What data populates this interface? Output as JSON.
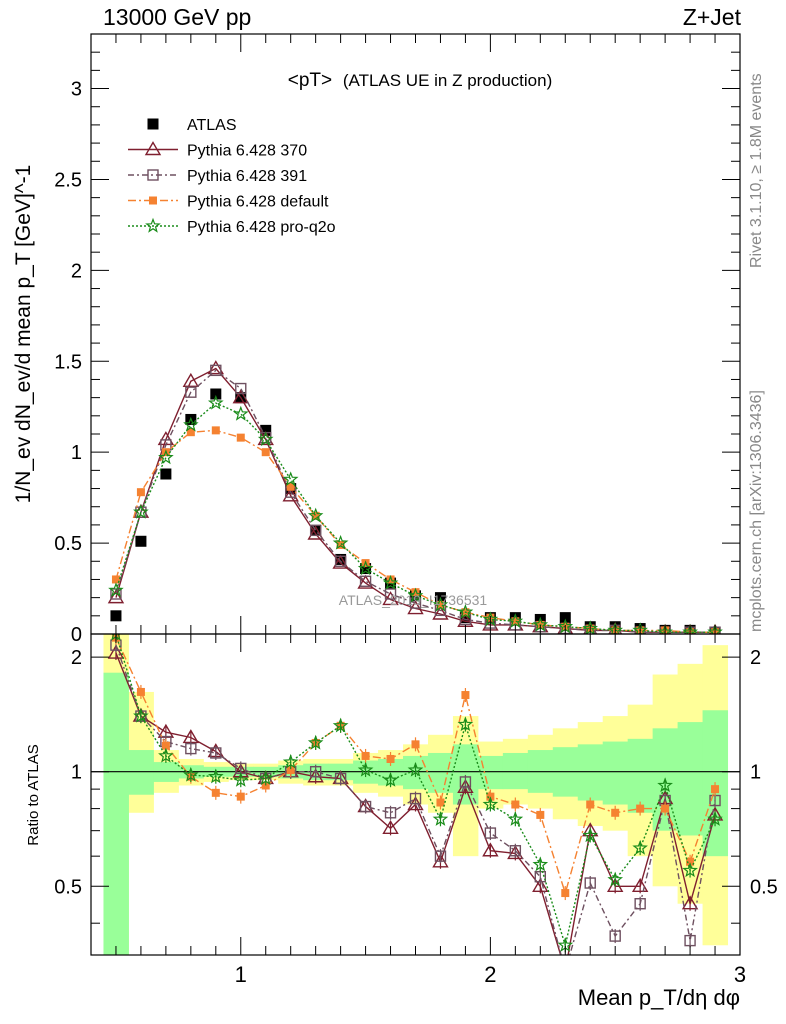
{
  "header": {
    "left": "13000 GeV pp",
    "right": "Z+Jet"
  },
  "side": {
    "rivet": "Rivet 3.1.10, ≥ 1.8M events",
    "mcplots": "mcplots.cern.ch [arXiv:1306.3436]"
  },
  "chart_data": [
    {
      "type": "scatter",
      "title": "<pT>",
      "subtitle": "(ATLAS UE in Z production)",
      "ylabel": "1/N_ev dN_ev/d mean p_T [GeV]^-1",
      "watermark": "ATLAS_2019_I1736531",
      "xlim": [
        0.4,
        3.0
      ],
      "ylim": [
        0,
        3.3
      ],
      "yticks": [
        0,
        0.5,
        1,
        1.5,
        2,
        2.5,
        3
      ],
      "ytick_labels": [
        "0",
        "0.5",
        "1",
        "1.5",
        "2",
        "2.5",
        "3"
      ],
      "legend_position": "top-left",
      "x": [
        0.5,
        0.6,
        0.7,
        0.8,
        0.9,
        1.0,
        1.1,
        1.2,
        1.3,
        1.4,
        1.5,
        1.6,
        1.7,
        1.8,
        1.9,
        2.0,
        2.1,
        2.2,
        2.3,
        2.4,
        2.5,
        2.6,
        2.7,
        2.8,
        2.9
      ],
      "series": [
        {
          "name": "ATLAS",
          "color": "#000000",
          "marker": "square",
          "values": [
            0.1,
            0.51,
            0.88,
            1.18,
            1.32,
            1.3,
            1.12,
            0.8,
            0.57,
            0.41,
            0.36,
            0.28,
            0.21,
            0.2,
            0.09,
            0.09,
            0.09,
            0.08,
            0.09,
            0.04,
            0.04,
            0.03,
            0.02,
            0.02,
            0.01
          ]
        },
        {
          "name": "Pythia 6.428 370",
          "color": "#7f1f2f",
          "marker": "triangle",
          "dash": "",
          "values": [
            0.2,
            0.67,
            1.07,
            1.39,
            1.46,
            1.3,
            1.07,
            0.76,
            0.55,
            0.39,
            0.28,
            0.19,
            0.14,
            0.11,
            0.07,
            0.05,
            0.05,
            0.04,
            0.03,
            0.02,
            0.02,
            0.01,
            0.01,
            0.01,
            0.01
          ]
        },
        {
          "name": "Pythia 6.428 391",
          "color": "#6e5060",
          "marker": "open-square",
          "dash": "6,3,2,3",
          "values": [
            0.22,
            0.67,
            1.04,
            1.33,
            1.45,
            1.35,
            1.08,
            0.78,
            0.57,
            0.4,
            0.29,
            0.22,
            0.17,
            0.13,
            0.08,
            0.06,
            0.05,
            0.04,
            0.03,
            0.02,
            0.02,
            0.01,
            0.01,
            0.01,
            0.01
          ]
        },
        {
          "name": "Pythia 6.428 default",
          "color": "#f58231",
          "marker": "filled-square",
          "dash": "8,3,2,3",
          "values": [
            0.3,
            0.78,
            1.0,
            1.11,
            1.12,
            1.08,
            1.0,
            0.81,
            0.65,
            0.49,
            0.39,
            0.3,
            0.23,
            0.16,
            0.12,
            0.09,
            0.07,
            0.05,
            0.04,
            0.03,
            0.02,
            0.02,
            0.02,
            0.01,
            0.01
          ]
        },
        {
          "name": "Pythia 6.428 pro-q2o",
          "color": "#1a8c1a",
          "marker": "star",
          "dash": "2,2",
          "values": [
            0.24,
            0.67,
            0.97,
            1.15,
            1.27,
            1.21,
            1.07,
            0.85,
            0.65,
            0.5,
            0.36,
            0.28,
            0.21,
            0.16,
            0.12,
            0.08,
            0.07,
            0.05,
            0.04,
            0.03,
            0.02,
            0.02,
            0.01,
            0.01,
            0.01
          ]
        }
      ]
    },
    {
      "type": "scatter",
      "xlabel": "Mean p_T/dη dφ",
      "ylabel": "Ratio to ATLAS",
      "xlim": [
        0.4,
        3.0
      ],
      "ylim": [
        0.33,
        2.3
      ],
      "xticks": [
        1,
        2,
        3
      ],
      "xtick_labels": [
        "1",
        "2",
        "3"
      ],
      "yticks": [
        0.5,
        1,
        2
      ],
      "ytick_labels": [
        "0.5",
        "1",
        "2"
      ],
      "band_edges": [
        0.45,
        0.55,
        0.65,
        0.75,
        0.85,
        0.95,
        1.05,
        1.15,
        1.25,
        1.35,
        1.45,
        1.55,
        1.65,
        1.75,
        1.85,
        1.95,
        2.05,
        2.15,
        2.25,
        2.35,
        2.45,
        2.55,
        2.65,
        2.75,
        2.85,
        2.95
      ],
      "yellow_band": [
        [
          0.33,
          2.3
        ],
        [
          0.78,
          1.62
        ],
        [
          0.88,
          1.14
        ],
        [
          0.92,
          1.08
        ],
        [
          0.94,
          1.06
        ],
        [
          0.95,
          1.05
        ],
        [
          0.95,
          1.05
        ],
        [
          0.93,
          1.07
        ],
        [
          0.92,
          1.08
        ],
        [
          0.92,
          1.08
        ],
        [
          0.88,
          1.12
        ],
        [
          0.86,
          1.14
        ],
        [
          0.82,
          1.18
        ],
        [
          0.78,
          1.25
        ],
        [
          0.6,
          1.4
        ],
        [
          0.8,
          1.2
        ],
        [
          0.82,
          1.22
        ],
        [
          0.8,
          1.25
        ],
        [
          0.75,
          1.3
        ],
        [
          0.72,
          1.35
        ],
        [
          0.7,
          1.4
        ],
        [
          0.6,
          1.5
        ],
        [
          0.5,
          1.8
        ],
        [
          0.45,
          1.92
        ],
        [
          0.35,
          2.15
        ]
      ],
      "green_band": [
        [
          0.33,
          1.82
        ],
        [
          0.87,
          1.14
        ],
        [
          0.94,
          1.06
        ],
        [
          0.96,
          1.04
        ],
        [
          0.97,
          1.03
        ],
        [
          0.97,
          1.03
        ],
        [
          0.97,
          1.03
        ],
        [
          0.96,
          1.04
        ],
        [
          0.95,
          1.05
        ],
        [
          0.95,
          1.05
        ],
        [
          0.93,
          1.07
        ],
        [
          0.92,
          1.08
        ],
        [
          0.9,
          1.1
        ],
        [
          0.88,
          1.12
        ],
        [
          0.82,
          1.18
        ],
        [
          0.9,
          1.1
        ],
        [
          0.9,
          1.12
        ],
        [
          0.88,
          1.14
        ],
        [
          0.86,
          1.16
        ],
        [
          0.84,
          1.18
        ],
        [
          0.82,
          1.2
        ],
        [
          0.78,
          1.22
        ],
        [
          0.7,
          1.3
        ],
        [
          0.68,
          1.35
        ],
        [
          0.6,
          1.45
        ]
      ],
      "series": [
        {
          "name": "Pythia 6.428 370",
          "values": [
            2.05,
            1.4,
            1.27,
            1.23,
            1.13,
            1.0,
            0.96,
            1.0,
            0.97,
            0.96,
            0.81,
            0.71,
            0.82,
            0.58,
            0.91,
            0.62,
            0.61,
            0.5,
            0.3,
            0.7,
            0.5,
            0.5,
            0.85,
            0.45,
            0.77
          ]
        },
        {
          "name": "Pythia 6.428 391",
          "values": [
            2.15,
            1.4,
            1.2,
            1.15,
            1.12,
            1.02,
            0.96,
            1.0,
            1.0,
            0.96,
            0.81,
            0.78,
            0.85,
            0.6,
            0.94,
            0.69,
            0.62,
            0.53,
            0.3,
            0.51,
            0.37,
            0.45,
            0.84,
            0.36,
            0.84
          ]
        },
        {
          "name": "Pythia 6.428 default",
          "values": [
            2.25,
            1.62,
            1.17,
            0.97,
            0.88,
            0.86,
            0.92,
            1.01,
            1.19,
            1.32,
            1.1,
            1.08,
            1.18,
            0.83,
            1.59,
            0.86,
            0.82,
            0.77,
            0.48,
            0.82,
            0.78,
            0.8,
            0.8,
            0.58,
            0.9
          ]
        },
        {
          "name": "Pythia 6.428 pro-q2o",
          "values": [
            2.3,
            1.4,
            1.1,
            0.98,
            0.97,
            0.95,
            0.96,
            1.06,
            1.19,
            1.32,
            1.01,
            0.95,
            1.01,
            0.75,
            1.33,
            0.82,
            0.75,
            0.57,
            0.35,
            0.68,
            0.52,
            0.63,
            0.92,
            0.55,
            0.75
          ]
        }
      ]
    }
  ]
}
